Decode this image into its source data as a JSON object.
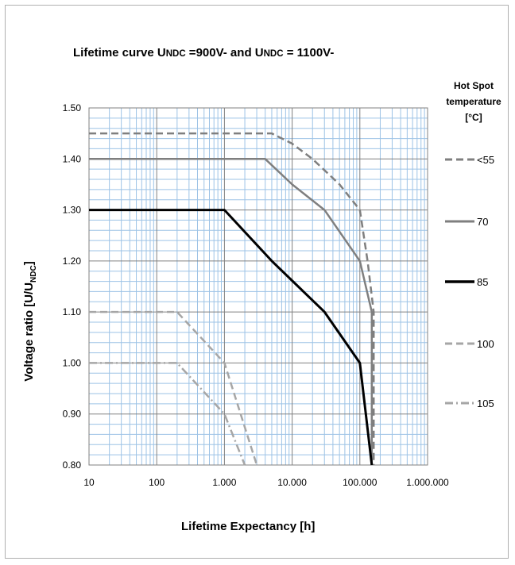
{
  "chart_data": {
    "type": "line",
    "title_parts": [
      "Lifetime curve U",
      "NDC",
      " =900V- and U",
      "NDC",
      " = 1100V-"
    ],
    "xlabel": "Lifetime Expectancy   [h]",
    "ylabel_parts": [
      "Voltage ratio [U/U",
      "NDC",
      "]"
    ],
    "legend_title": [
      "Hot Spot",
      "temperature",
      "[°C]"
    ],
    "x_scale": "log",
    "xlim": [
      10,
      1000000
    ],
    "ylim": [
      0.8,
      1.5
    ],
    "x_ticks": [
      10,
      100,
      1000,
      10000,
      100000,
      1000000
    ],
    "x_tick_labels": [
      "10",
      "100",
      "1.000",
      "10.000",
      "100.000",
      "1.000.000"
    ],
    "y_ticks": [
      0.8,
      0.9,
      1.0,
      1.1,
      1.2,
      1.3,
      1.4,
      1.5
    ],
    "y_tick_labels": [
      "0.80",
      "0.90",
      "1.00",
      "1.10",
      "1.20",
      "1.30",
      "1.40",
      "1.50"
    ],
    "grid": true,
    "legend_position": "right",
    "series": [
      {
        "name": "<55",
        "color": "#7f7f7f",
        "dash": "dashed",
        "x": [
          10,
          5000,
          10000,
          20000,
          50000,
          100000,
          130000,
          160000,
          160000
        ],
        "y": [
          1.45,
          1.45,
          1.43,
          1.4,
          1.35,
          1.3,
          1.2,
          1.1,
          0.8
        ]
      },
      {
        "name": "70",
        "color": "#7f7f7f",
        "dash": "solid",
        "x": [
          10,
          4000,
          10000,
          30000,
          100000,
          150000,
          150000
        ],
        "y": [
          1.4,
          1.4,
          1.35,
          1.3,
          1.2,
          1.1,
          0.8
        ]
      },
      {
        "name": "85",
        "color": "#000000",
        "dash": "solid",
        "x": [
          10,
          1000,
          5000,
          30000,
          100000,
          150000
        ],
        "y": [
          1.3,
          1.3,
          1.2,
          1.1,
          1.0,
          0.8
        ]
      },
      {
        "name": "100",
        "color": "#a6a6a6",
        "dash": "dashed",
        "x": [
          10,
          200,
          1000,
          3000
        ],
        "y": [
          1.1,
          1.1,
          1.0,
          0.8
        ]
      },
      {
        "name": "105",
        "color": "#a6a6a6",
        "dash": "dashdot",
        "x": [
          10,
          200,
          1000,
          2000
        ],
        "y": [
          1.0,
          1.0,
          0.9,
          0.8
        ]
      }
    ]
  }
}
